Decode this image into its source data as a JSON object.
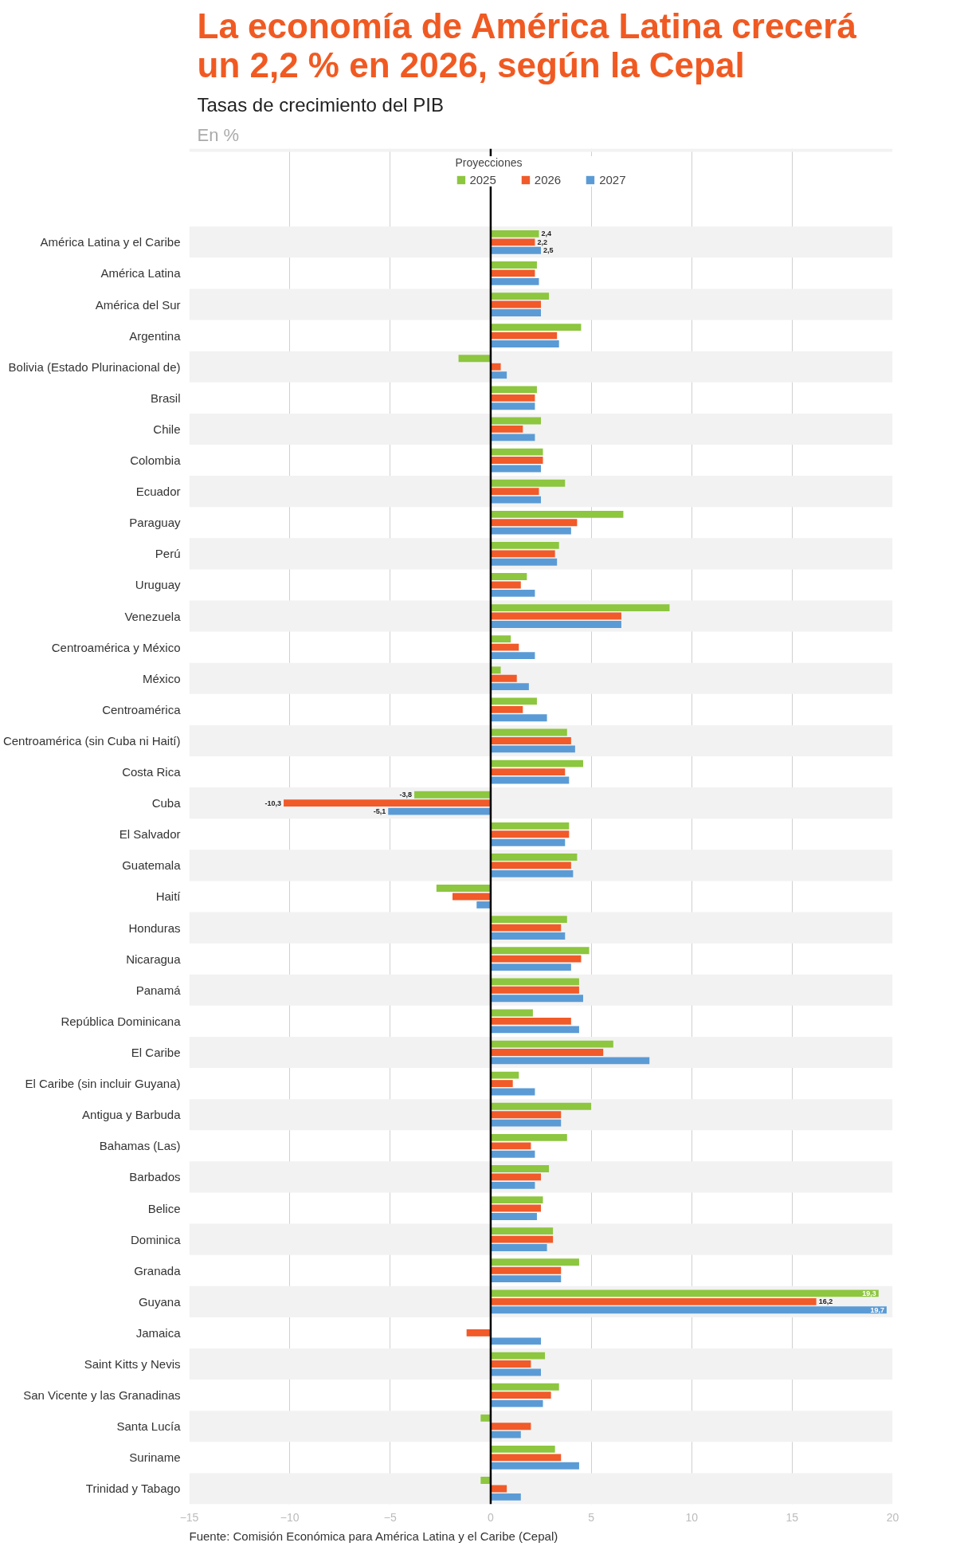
{
  "chart_data": {
    "type": "bar",
    "orientation": "horizontal",
    "title": "La economía de América Latina crecerá un 2,2 % en 2026, según la Cepal",
    "subtitle": "Tasas de crecimiento del PIB",
    "annotations": [
      "En %",
      "Fuente: Comisión Económica para América Latina y el Caribe (Cepal)"
    ],
    "legend_title": "Proyecciones",
    "categories": [
      "América Latina y el Caribe",
      "América Latina",
      "América del Sur",
      "Argentina",
      "Bolivia (Estado Plurinacional de)",
      "Brasil",
      "Chile",
      "Colombia",
      "Ecuador",
      "Paraguay",
      "Perú",
      "Uruguay",
      "Venezuela",
      "Centroamérica y México",
      "México",
      "Centroamérica",
      "Centroamérica (sin Cuba ni Haití)",
      "Costa Rica",
      "Cuba",
      "El Salvador",
      "Guatemala",
      "Haití",
      "Honduras",
      "Nicaragua",
      "Panamá",
      "República Dominicana",
      "El Caribe",
      "El Caribe (sin incluir Guyana)",
      "Antigua y Barbuda",
      "Bahamas (Las)",
      "Barbados",
      "Belice",
      "Dominica",
      "Granada",
      "Guyana",
      "Jamaica",
      "Saint Kitts y Nevis",
      "San Vicente y las Granadinas",
      "Santa Lucía",
      "Suriname",
      "Trinidad y Tabago"
    ],
    "series": [
      {
        "name": "2025",
        "color": "#8dc63f",
        "values": [
          2.4,
          2.3,
          2.9,
          4.5,
          -1.6,
          2.3,
          2.5,
          2.6,
          3.7,
          6.6,
          3.4,
          1.8,
          8.9,
          1.0,
          0.5,
          2.3,
          3.8,
          4.6,
          -3.8,
          3.9,
          4.3,
          -2.7,
          3.8,
          4.9,
          4.4,
          2.1,
          6.1,
          1.4,
          5.0,
          3.8,
          2.9,
          2.6,
          3.1,
          4.4,
          19.3,
          null,
          2.7,
          3.4,
          -0.5,
          3.2,
          -0.5
        ],
        "value_labels": [
          "2,4",
          null,
          null,
          null,
          null,
          null,
          null,
          null,
          null,
          null,
          null,
          null,
          null,
          null,
          null,
          null,
          null,
          null,
          "-3,8",
          null,
          null,
          null,
          null,
          null,
          null,
          null,
          null,
          null,
          null,
          null,
          null,
          null,
          null,
          null,
          "19,3",
          null,
          null,
          null,
          null,
          null,
          null
        ]
      },
      {
        "name": "2026",
        "color": "#f15a29",
        "values": [
          2.2,
          2.2,
          2.5,
          3.3,
          0.5,
          2.2,
          1.6,
          2.6,
          2.4,
          4.3,
          3.2,
          1.5,
          6.5,
          1.4,
          1.3,
          1.6,
          4.0,
          3.7,
          -10.3,
          3.9,
          4.0,
          -1.9,
          3.5,
          4.5,
          4.4,
          4.0,
          5.6,
          1.1,
          3.5,
          2.0,
          2.5,
          2.5,
          3.1,
          3.5,
          16.2,
          -1.2,
          2.0,
          3.0,
          2.0,
          3.5,
          0.8
        ],
        "value_labels": [
          "2,2",
          null,
          null,
          null,
          null,
          null,
          null,
          null,
          null,
          null,
          null,
          null,
          null,
          null,
          null,
          null,
          null,
          null,
          "-10,3",
          null,
          null,
          null,
          null,
          null,
          null,
          null,
          null,
          null,
          null,
          null,
          null,
          null,
          null,
          null,
          "16,2",
          null,
          null,
          null,
          null,
          null,
          null
        ]
      },
      {
        "name": "2027",
        "color": "#5b9bd5",
        "values": [
          2.5,
          2.4,
          2.5,
          3.4,
          0.8,
          2.2,
          2.2,
          2.5,
          2.5,
          4.0,
          3.3,
          2.2,
          6.5,
          2.2,
          1.9,
          2.8,
          4.2,
          3.9,
          -5.1,
          3.7,
          4.1,
          -0.7,
          3.7,
          4.0,
          4.6,
          4.4,
          7.9,
          2.2,
          3.5,
          2.2,
          2.2,
          2.3,
          2.8,
          3.5,
          19.7,
          2.5,
          2.5,
          2.6,
          1.5,
          4.4,
          1.5
        ],
        "value_labels": [
          "2,5",
          null,
          null,
          null,
          null,
          null,
          null,
          null,
          null,
          null,
          null,
          null,
          null,
          null,
          null,
          null,
          null,
          null,
          "-5,1",
          null,
          null,
          null,
          null,
          null,
          null,
          null,
          null,
          null,
          null,
          null,
          null,
          null,
          null,
          null,
          "19,7",
          null,
          null,
          null,
          null,
          null,
          null
        ]
      }
    ],
    "xlim": [
      -15,
      20
    ],
    "xticks": [
      -15,
      -10,
      -5,
      0,
      5,
      10,
      15,
      20
    ],
    "ref_lines": [
      {
        "axis": "x",
        "value": 0,
        "color": "#000000"
      }
    ],
    "grid": "x",
    "legend": "top"
  }
}
